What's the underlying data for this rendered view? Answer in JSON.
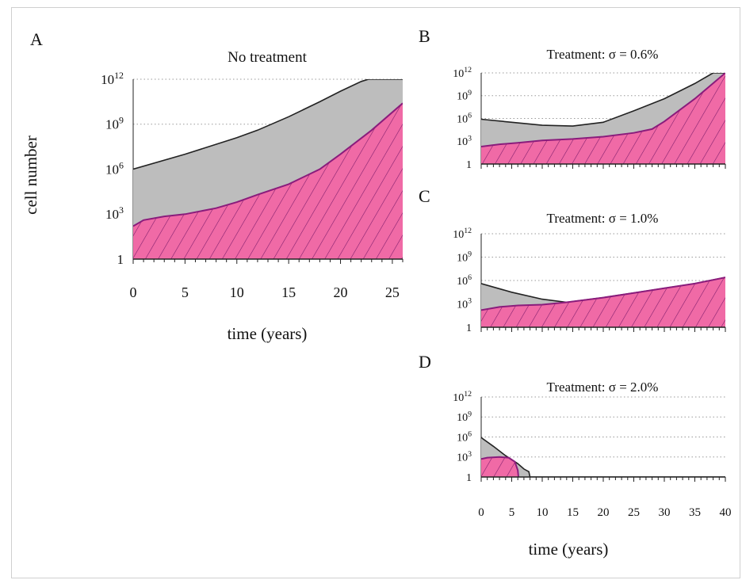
{
  "chart_data": [
    {
      "panel_label": "A",
      "type": "area",
      "title": "No treatment",
      "xlabel": "time (years)",
      "ylabel": "cell number",
      "xlim": [
        0,
        26
      ],
      "x_ticks": [
        0,
        5,
        10,
        15,
        20,
        25
      ],
      "ylim_log10": [
        0,
        12
      ],
      "y_tick_labels": [
        {
          "base": "1",
          "exp": ""
        },
        {
          "base": "10",
          "exp": "3"
        },
        {
          "base": "10",
          "exp": "6"
        },
        {
          "base": "10",
          "exp": "9"
        },
        {
          "base": "10",
          "exp": "12"
        }
      ],
      "y_scale": "log",
      "grid": "dotted horizontal",
      "series": [
        {
          "role": "total",
          "color": "#bdbdbd",
          "line": "#222222",
          "x": [
            0,
            5,
            10,
            12,
            15,
            18,
            20,
            22,
            22.7,
            26
          ],
          "log10_y": [
            6,
            7,
            8.1,
            8.6,
            9.5,
            10.5,
            11.2,
            11.85,
            12,
            12
          ]
        },
        {
          "role": "resistant",
          "color": "#f06aa6",
          "line": "#8a1c7c",
          "hatch": true,
          "x": [
            0,
            1,
            3,
            5,
            8,
            10,
            12,
            15,
            18,
            20,
            23,
            26
          ],
          "log10_y": [
            2.2,
            2.6,
            2.85,
            3.0,
            3.4,
            3.8,
            4.3,
            5.0,
            6.0,
            7.0,
            8.6,
            10.4
          ]
        }
      ]
    },
    {
      "panel_label": "B",
      "type": "area",
      "title": "Treatment: σ = 0.6%",
      "xlim": [
        0,
        40
      ],
      "ylim_log10": [
        0,
        12
      ],
      "y_tick_labels": [
        {
          "base": "1",
          "exp": ""
        },
        {
          "base": "10",
          "exp": "3"
        },
        {
          "base": "10",
          "exp": "6"
        },
        {
          "base": "10",
          "exp": "9"
        },
        {
          "base": "10",
          "exp": "12"
        }
      ],
      "y_scale": "log",
      "grid": "dotted horizontal",
      "series": [
        {
          "role": "total",
          "color": "#bdbdbd",
          "line": "#222222",
          "x": [
            0,
            5,
            10,
            15,
            20,
            25,
            30,
            35,
            38,
            40
          ],
          "log10_y": [
            5.9,
            5.5,
            5.1,
            5.0,
            5.5,
            7.0,
            8.6,
            10.6,
            12,
            12
          ]
        },
        {
          "role": "resistant",
          "color": "#f06aa6",
          "line": "#8a1c7c",
          "hatch": true,
          "x": [
            0,
            3,
            6,
            10,
            15,
            20,
            25,
            28,
            30,
            35,
            40
          ],
          "log10_y": [
            2.3,
            2.6,
            2.8,
            3.1,
            3.3,
            3.6,
            4.1,
            4.6,
            5.6,
            8.6,
            12
          ]
        }
      ]
    },
    {
      "panel_label": "C",
      "type": "area",
      "title": "Treatment: σ = 1.0%",
      "xlim": [
        0,
        40
      ],
      "ylim_log10": [
        0,
        12
      ],
      "y_tick_labels": [
        {
          "base": "1",
          "exp": ""
        },
        {
          "base": "10",
          "exp": "3"
        },
        {
          "base": "10",
          "exp": "6"
        },
        {
          "base": "10",
          "exp": "9"
        },
        {
          "base": "10",
          "exp": "12"
        }
      ],
      "y_scale": "log",
      "grid": "dotted horizontal",
      "series": [
        {
          "role": "total",
          "color": "#bdbdbd",
          "line": "#222222",
          "x": [
            0,
            5,
            10,
            14,
            20,
            25,
            30,
            35,
            40
          ],
          "log10_y": [
            5.6,
            4.5,
            3.6,
            3.2,
            3.8,
            4.4,
            5.0,
            5.6,
            6.4
          ]
        },
        {
          "role": "resistant",
          "color": "#f06aa6",
          "line": "#8a1c7c",
          "hatch": true,
          "x": [
            0,
            3,
            6,
            10,
            14,
            20,
            25,
            30,
            35,
            40
          ],
          "log10_y": [
            2.2,
            2.6,
            2.8,
            2.9,
            3.2,
            3.8,
            4.4,
            5.0,
            5.6,
            6.4
          ]
        }
      ]
    },
    {
      "panel_label": "D",
      "type": "area",
      "title": "Treatment: σ = 2.0%",
      "xlabel": "time (years)",
      "xlim": [
        0,
        40
      ],
      "x_ticks": [
        0,
        5,
        10,
        15,
        20,
        25,
        30,
        35,
        40
      ],
      "ylim_log10": [
        0,
        12
      ],
      "y_tick_labels": [
        {
          "base": "1",
          "exp": ""
        },
        {
          "base": "10",
          "exp": "3"
        },
        {
          "base": "10",
          "exp": "6"
        },
        {
          "base": "10",
          "exp": "9"
        },
        {
          "base": "10",
          "exp": "12"
        }
      ],
      "y_scale": "log",
      "grid": "dotted horizontal",
      "series": [
        {
          "role": "total",
          "color": "#bdbdbd",
          "line": "#222222",
          "x": [
            0,
            2,
            4,
            6,
            7,
            7.8,
            8,
            40
          ],
          "log10_y": [
            5.9,
            4.6,
            3.2,
            2.0,
            1.2,
            0.8,
            0,
            0
          ]
        },
        {
          "role": "resistant",
          "color": "#f06aa6",
          "line": "#8a1c7c",
          "hatch": true,
          "x": [
            0,
            1,
            3,
            4.5,
            5.5,
            6,
            6.1
          ],
          "log10_y": [
            2.7,
            2.9,
            3.0,
            2.9,
            2.3,
            1.0,
            0
          ]
        }
      ]
    }
  ]
}
